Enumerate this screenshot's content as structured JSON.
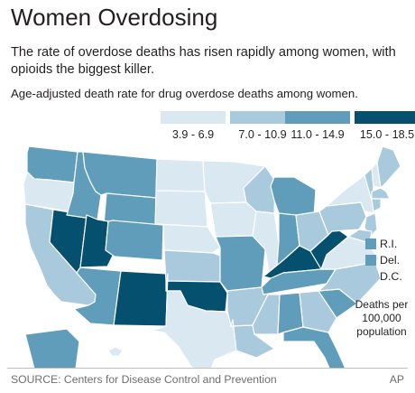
{
  "header": {
    "title": "Women Overdosing",
    "subtitle": "The rate of overdose deaths has risen rapidly among women, with opioids the biggest killer.",
    "subhead": "Age-adjusted death rate for drug overdose deaths among women."
  },
  "legend": {
    "bins": [
      {
        "label": "3.9 - 6.9",
        "color": "#d9e8f1"
      },
      {
        "label": "7.0 - 10.9",
        "color": "#a9c9dc"
      },
      {
        "label": "11.0 - 14.9",
        "color": "#5f9dbb"
      },
      {
        "label": "15.0 - 18.5",
        "color": "#05506e"
      }
    ]
  },
  "small_states": [
    {
      "label": "R.I.",
      "bin": 2
    },
    {
      "label": "Del.",
      "bin": 2
    },
    {
      "label": "D.C.",
      "bin": 1
    }
  ],
  "units": "Deaths per 100,000 population",
  "footer": {
    "source": "SOURCE: Centers for Disease Control and Prevention",
    "credit": "AP"
  },
  "map_data": {
    "colors": {
      "ocean_outline": "#ffffff",
      "state_border": "#ffffff"
    },
    "states": [
      {
        "id": "WA",
        "bin": 2
      },
      {
        "id": "OR",
        "bin": 0
      },
      {
        "id": "CA",
        "bin": 1
      },
      {
        "id": "NV",
        "bin": 3
      },
      {
        "id": "ID",
        "bin": 2
      },
      {
        "id": "MT",
        "bin": 2
      },
      {
        "id": "WY",
        "bin": 2
      },
      {
        "id": "UT",
        "bin": 3
      },
      {
        "id": "AZ",
        "bin": 2
      },
      {
        "id": "CO",
        "bin": 2
      },
      {
        "id": "NM",
        "bin": 3
      },
      {
        "id": "ND",
        "bin": 0
      },
      {
        "id": "SD",
        "bin": 0
      },
      {
        "id": "NE",
        "bin": 0
      },
      {
        "id": "KS",
        "bin": 1
      },
      {
        "id": "OK",
        "bin": 3
      },
      {
        "id": "TX",
        "bin": 0
      },
      {
        "id": "MN",
        "bin": 0
      },
      {
        "id": "IA",
        "bin": 0
      },
      {
        "id": "MO",
        "bin": 2
      },
      {
        "id": "AR",
        "bin": 1
      },
      {
        "id": "LA",
        "bin": 1
      },
      {
        "id": "WI",
        "bin": 1
      },
      {
        "id": "IL",
        "bin": 0
      },
      {
        "id": "MI",
        "bin": 2
      },
      {
        "id": "IN",
        "bin": 2
      },
      {
        "id": "OH",
        "bin": 1
      },
      {
        "id": "KY",
        "bin": 3
      },
      {
        "id": "TN",
        "bin": 2
      },
      {
        "id": "MS",
        "bin": 1
      },
      {
        "id": "AL",
        "bin": 2
      },
      {
        "id": "GA",
        "bin": 1
      },
      {
        "id": "FL",
        "bin": 2
      },
      {
        "id": "SC",
        "bin": 2
      },
      {
        "id": "NC",
        "bin": 1
      },
      {
        "id": "VA",
        "bin": 0
      },
      {
        "id": "WV",
        "bin": 3
      },
      {
        "id": "PA",
        "bin": 1
      },
      {
        "id": "NY",
        "bin": 0
      },
      {
        "id": "VT",
        "bin": 1
      },
      {
        "id": "NH",
        "bin": 0
      },
      {
        "id": "ME",
        "bin": 1
      },
      {
        "id": "MA",
        "bin": 1
      },
      {
        "id": "CT",
        "bin": 1
      },
      {
        "id": "NJ",
        "bin": 1
      },
      {
        "id": "MD",
        "bin": 1
      },
      {
        "id": "AK",
        "bin": 2
      },
      {
        "id": "HI",
        "bin": 0
      }
    ]
  }
}
